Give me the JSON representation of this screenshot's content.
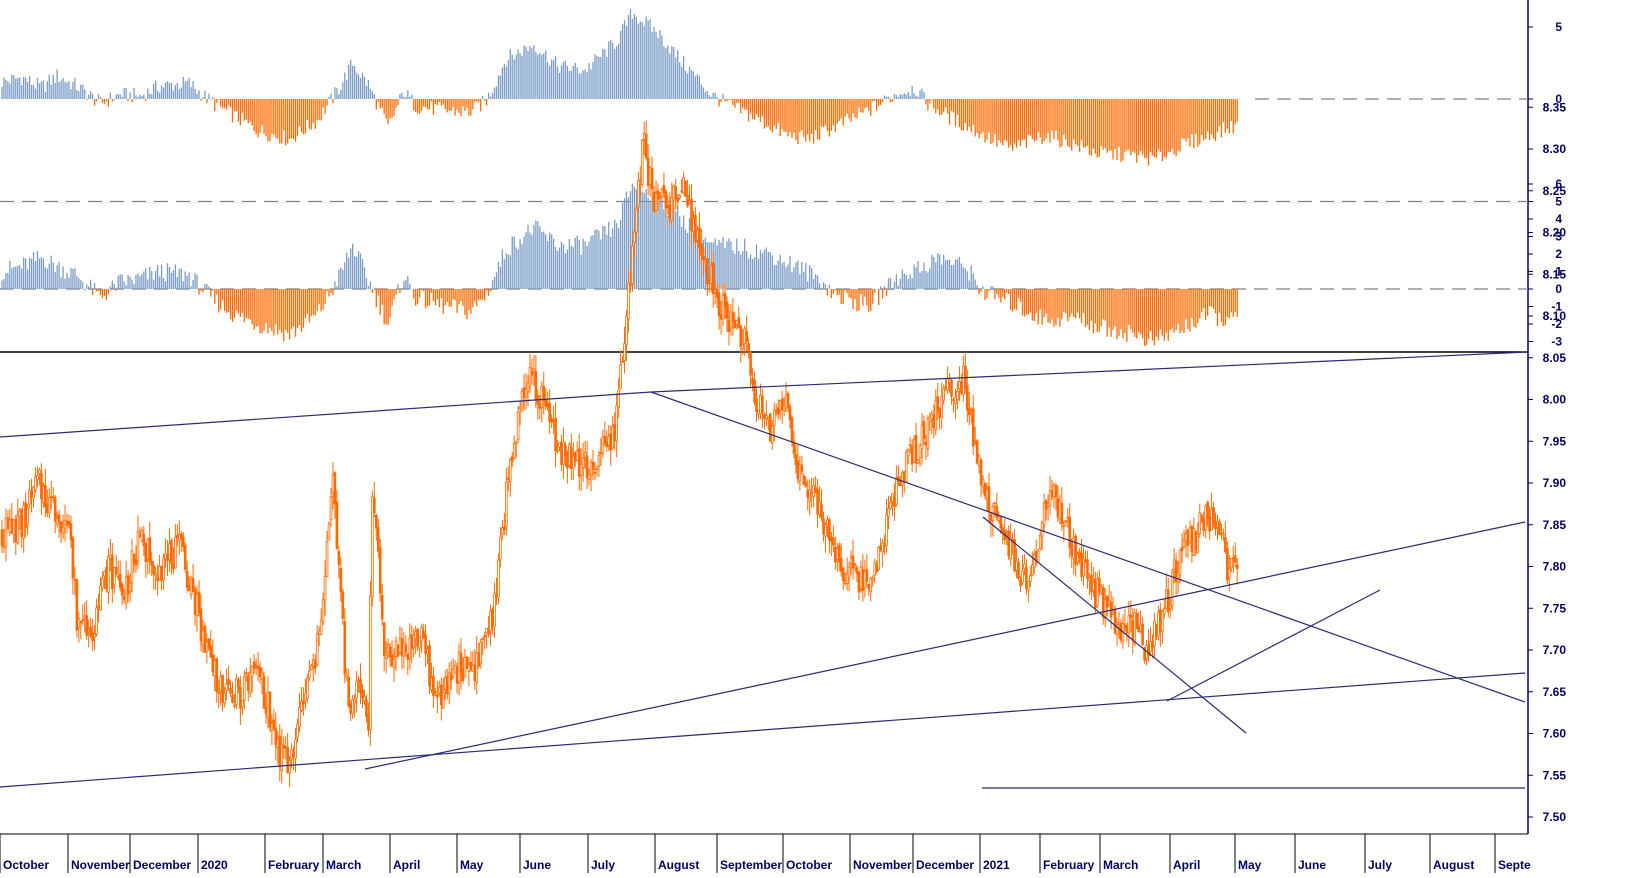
{
  "chart_data": {
    "type": "candlestick",
    "months": [
      "October",
      "November",
      "December",
      "2020",
      "February",
      "March",
      "April",
      "May",
      "June",
      "July",
      "August",
      "September",
      "October",
      "November",
      "December",
      "2021",
      "February",
      "March",
      "April",
      "May",
      "June",
      "July",
      "August",
      "Septe"
    ],
    "colors": {
      "positive": "#7a9cc6",
      "negative": "#ff6a00",
      "price": "#ff6a00",
      "trendline": "#2a2a7a",
      "axis": "#000066",
      "grid": "#808080"
    },
    "panels": [
      {
        "name": "histogram-oscillator-1",
        "type": "bar",
        "ticks": [
          "5",
          "0"
        ],
        "ylim": [
          -4,
          7
        ],
        "reference_lines": [
          0
        ],
        "keypoints": [
          [
            0,
            1.2
          ],
          [
            10,
            1.5
          ],
          [
            20,
            0.8
          ],
          [
            28,
            1.6
          ],
          [
            38,
            0.9
          ],
          [
            50,
            -0.3
          ],
          [
            60,
            0.3
          ],
          [
            70,
            0.2
          ],
          [
            80,
            0.9
          ],
          [
            95,
            1.1
          ],
          [
            106,
            -0.2
          ],
          [
            118,
            -1.2
          ],
          [
            130,
            -2.2
          ],
          [
            146,
            -2.8
          ],
          [
            160,
            -1.5
          ],
          [
            170,
            0.5
          ],
          [
            178,
            2.5
          ],
          [
            186,
            1.0
          ],
          [
            196,
            -2.0
          ],
          [
            204,
            0.5
          ],
          [
            210,
            -0.5
          ],
          [
            225,
            -0.8
          ],
          [
            238,
            -0.9
          ],
          [
            246,
            -0.1
          ],
          [
            256,
            2.8
          ],
          [
            270,
            3.8
          ],
          [
            282,
            2.3
          ],
          [
            296,
            2.0
          ],
          [
            312,
            4.0
          ],
          [
            320,
            6.0
          ],
          [
            333,
            4.6
          ],
          [
            345,
            2.6
          ],
          [
            354,
            1.3
          ],
          [
            360,
            0.3
          ],
          [
            370,
            -0.5
          ],
          [
            385,
            -1.5
          ],
          [
            398,
            -2.5
          ],
          [
            410,
            -2.8
          ],
          [
            425,
            -1.8
          ],
          [
            440,
            -0.8
          ],
          [
            455,
            0.4
          ],
          [
            463,
            0.8
          ],
          [
            470,
            -0.3
          ],
          [
            484,
            -1.5
          ],
          [
            498,
            -2.5
          ],
          [
            512,
            -3.5
          ],
          [
            530,
            -2.5
          ],
          [
            545,
            -3.2
          ],
          [
            557,
            -3.8
          ],
          [
            572,
            -3.9
          ],
          [
            585,
            -4.2
          ],
          [
            598,
            -3.3
          ],
          [
            612,
            -2.6
          ],
          [
            625,
            -1.9
          ]
        ]
      },
      {
        "name": "histogram-oscillator-2",
        "type": "bar",
        "ticks": [
          "6",
          "5",
          "4",
          "3",
          "2",
          "1",
          "0",
          "-1",
          "-2",
          "-3"
        ],
        "ylim": [
          -3.6,
          6.2
        ],
        "reference_lines": [
          5,
          0
        ],
        "keypoints": [
          [
            0,
            1.0
          ],
          [
            10,
            1.3
          ],
          [
            20,
            1.8
          ],
          [
            28,
            1.3
          ],
          [
            38,
            0.8
          ],
          [
            50,
            -0.5
          ],
          [
            60,
            0.4
          ],
          [
            70,
            0.6
          ],
          [
            80,
            1.0
          ],
          [
            95,
            0.8
          ],
          [
            106,
            -0.5
          ],
          [
            118,
            -1.5
          ],
          [
            130,
            -2.0
          ],
          [
            146,
            -2.6
          ],
          [
            160,
            -1.5
          ],
          [
            170,
            0.4
          ],
          [
            178,
            2.5
          ],
          [
            186,
            0.5
          ],
          [
            196,
            -2.0
          ],
          [
            204,
            0.8
          ],
          [
            210,
            -0.5
          ],
          [
            225,
            -1.0
          ],
          [
            238,
            -1.3
          ],
          [
            246,
            -0.3
          ],
          [
            256,
            2.3
          ],
          [
            270,
            3.5
          ],
          [
            282,
            2.5
          ],
          [
            296,
            2.5
          ],
          [
            312,
            3.6
          ],
          [
            320,
            6.0
          ],
          [
            333,
            5.2
          ],
          [
            345,
            4.0
          ],
          [
            354,
            3.2
          ],
          [
            360,
            2.5
          ],
          [
            375,
            2.4
          ],
          [
            390,
            2.0
          ],
          [
            405,
            1.2
          ],
          [
            416,
            0.5
          ],
          [
            422,
            -0.3
          ],
          [
            440,
            -1.0
          ],
          [
            456,
            0.8
          ],
          [
            466,
            1.2
          ],
          [
            476,
            1.8
          ],
          [
            490,
            1.2
          ],
          [
            498,
            -0.2
          ],
          [
            512,
            -0.8
          ],
          [
            530,
            -1.8
          ],
          [
            545,
            -1.6
          ],
          [
            557,
            -2.2
          ],
          [
            572,
            -2.5
          ],
          [
            585,
            -3.0
          ],
          [
            598,
            -2.3
          ],
          [
            612,
            -1.5
          ],
          [
            625,
            -1.8
          ]
        ]
      },
      {
        "name": "price",
        "type": "candlestick",
        "ticks": [
          "8.35",
          "8.30",
          "8.25",
          "8.20",
          "8.15",
          "8.10",
          "8.05",
          "8.00",
          "7.95",
          "7.90",
          "7.85",
          "7.80",
          "7.75",
          "7.70",
          "7.65",
          "7.60",
          "7.55",
          "7.50"
        ],
        "ylim": [
          7.485,
          8.38
        ],
        "keypoints": [
          [
            0,
            7.84
          ],
          [
            10,
            7.85
          ],
          [
            18,
            7.9
          ],
          [
            26,
            7.87
          ],
          [
            34,
            7.85
          ],
          [
            38,
            7.74
          ],
          [
            46,
            7.73
          ],
          [
            54,
            7.8
          ],
          [
            62,
            7.77
          ],
          [
            70,
            7.83
          ],
          [
            80,
            7.8
          ],
          [
            90,
            7.82
          ],
          [
            96,
            7.78
          ],
          [
            104,
            7.7
          ],
          [
            114,
            7.64
          ],
          [
            122,
            7.65
          ],
          [
            130,
            7.68
          ],
          [
            140,
            7.58
          ],
          [
            146,
            7.56
          ],
          [
            152,
            7.63
          ],
          [
            160,
            7.7
          ],
          [
            168,
            7.9
          ],
          [
            176,
            7.62
          ],
          [
            182,
            7.66
          ],
          [
            186,
            7.62
          ],
          [
            188,
            7.9
          ],
          [
            194,
            7.7
          ],
          [
            204,
            7.7
          ],
          [
            214,
            7.72
          ],
          [
            220,
            7.63
          ],
          [
            230,
            7.68
          ],
          [
            240,
            7.68
          ],
          [
            250,
            7.75
          ],
          [
            258,
            7.93
          ],
          [
            268,
            8.03
          ],
          [
            274,
            8.0
          ],
          [
            284,
            7.94
          ],
          [
            294,
            7.92
          ],
          [
            300,
            7.92
          ],
          [
            310,
            7.95
          ],
          [
            316,
            8.07
          ],
          [
            322,
            8.24
          ],
          [
            326,
            8.31
          ],
          [
            330,
            8.24
          ],
          [
            338,
            8.23
          ],
          [
            346,
            8.25
          ],
          [
            352,
            8.2
          ],
          [
            360,
            8.14
          ],
          [
            368,
            8.1
          ],
          [
            376,
            8.08
          ],
          [
            382,
            8.0
          ],
          [
            390,
            7.97
          ],
          [
            398,
            8.0
          ],
          [
            406,
            7.9
          ],
          [
            414,
            7.87
          ],
          [
            420,
            7.84
          ],
          [
            426,
            7.8
          ],
          [
            432,
            7.79
          ],
          [
            440,
            7.78
          ],
          [
            450,
            7.86
          ],
          [
            458,
            7.92
          ],
          [
            466,
            7.95
          ],
          [
            472,
            7.98
          ],
          [
            480,
            8.01
          ],
          [
            488,
            8.03
          ],
          [
            494,
            7.95
          ],
          [
            500,
            7.88
          ],
          [
            508,
            7.84
          ],
          [
            516,
            7.8
          ],
          [
            522,
            7.77
          ],
          [
            528,
            7.86
          ],
          [
            534,
            7.88
          ],
          [
            540,
            7.85
          ],
          [
            546,
            7.8
          ],
          [
            552,
            7.78
          ],
          [
            558,
            7.76
          ],
          [
            566,
            7.72
          ],
          [
            574,
            7.73
          ],
          [
            582,
            7.7
          ],
          [
            586,
            7.72
          ],
          [
            592,
            7.76
          ],
          [
            598,
            7.82
          ],
          [
            606,
            7.84
          ],
          [
            612,
            7.86
          ],
          [
            618,
            7.85
          ],
          [
            622,
            7.79
          ],
          [
            628,
            7.8
          ]
        ]
      }
    ]
  }
}
